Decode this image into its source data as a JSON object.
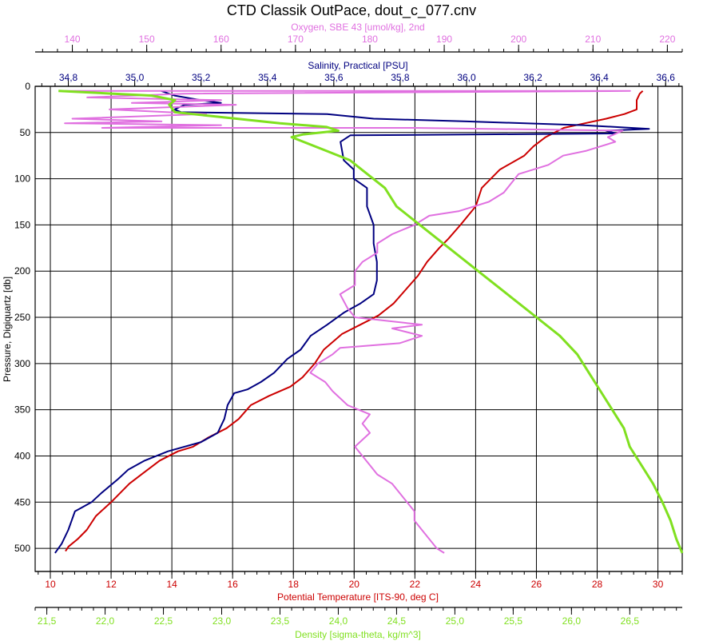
{
  "chart_data": {
    "type": "line",
    "title": "CTD Classik OutPace, dout_c_077.cnv",
    "y_axis": {
      "label": "Pressure, Digiquartz [db]",
      "range": [
        0,
        525
      ],
      "inverted": true,
      "ticks": [
        0,
        50,
        100,
        150,
        200,
        250,
        300,
        350,
        400,
        450,
        500
      ]
    },
    "x_axes": {
      "oxygen": {
        "label": "Oxygen, SBE 43 [umol/kg], 2nd",
        "position": "top-1",
        "range": [
          135,
          222
        ],
        "ticks": [
          140,
          150,
          160,
          170,
          180,
          190,
          200,
          210,
          220
        ],
        "color": "#e070e0"
      },
      "salinity": {
        "label": "Salinity, Practical [PSU]",
        "position": "top-2",
        "range": [
          34.7,
          36.65
        ],
        "ticks": [
          "34.8",
          "35.0",
          "35.2",
          "35.4",
          "35.6",
          "35.8",
          "36.0",
          "36.2",
          "36.4",
          "36.6"
        ],
        "color": "#000080"
      },
      "temperature": {
        "label": "Potential Temperature [ITS-90, deg C]",
        "position": "bottom-1",
        "range": [
          9.5,
          30.8
        ],
        "ticks": [
          10,
          12,
          14,
          16,
          18,
          20,
          22,
          24,
          26,
          28,
          30
        ],
        "color": "#cc0000"
      },
      "density": {
        "label": "Density [sigma-theta, kg/m^3]",
        "position": "bottom-2",
        "range": [
          21.4,
          26.95
        ],
        "ticks": [
          "21.5",
          "22.0",
          "22.5",
          "23.0",
          "23.5",
          "24.0",
          "24.5",
          "25.0",
          "25.5",
          "26.0",
          "26.5"
        ],
        "color": "#80e020"
      }
    },
    "grid": true,
    "series": [
      {
        "axis": "temperature",
        "color": "#cc0000",
        "points": [
          [
            29.5,
            5
          ],
          [
            29.4,
            8
          ],
          [
            29.3,
            15
          ],
          [
            29.3,
            25
          ],
          [
            28.9,
            30
          ],
          [
            28.3,
            35
          ],
          [
            27.6,
            40
          ],
          [
            26.9,
            45
          ],
          [
            26.3,
            55
          ],
          [
            25.9,
            65
          ],
          [
            25.6,
            75
          ],
          [
            24.8,
            90
          ],
          [
            24.2,
            110
          ],
          [
            24.0,
            130
          ],
          [
            23.5,
            150
          ],
          [
            23.1,
            165
          ],
          [
            22.8,
            175
          ],
          [
            22.4,
            190
          ],
          [
            22.1,
            205
          ],
          [
            21.7,
            220
          ],
          [
            21.3,
            235
          ],
          [
            20.8,
            248
          ],
          [
            20.2,
            258
          ],
          [
            19.6,
            268
          ],
          [
            19.0,
            285
          ],
          [
            18.7,
            300
          ],
          [
            18.3,
            315
          ],
          [
            17.9,
            325
          ],
          [
            17.2,
            335
          ],
          [
            16.6,
            345
          ],
          [
            16.2,
            360
          ],
          [
            15.8,
            370
          ],
          [
            15.2,
            380
          ],
          [
            14.7,
            390
          ],
          [
            14.2,
            395
          ],
          [
            13.6,
            405
          ],
          [
            13.0,
            420
          ],
          [
            12.6,
            430
          ],
          [
            12.0,
            450
          ],
          [
            11.5,
            465
          ],
          [
            11.2,
            480
          ],
          [
            10.9,
            490
          ],
          [
            10.6,
            498
          ],
          [
            10.5,
            503
          ]
        ]
      },
      {
        "axis": "salinity",
        "color": "#000080",
        "points": [
          [
            35.08,
            5
          ],
          [
            35.12,
            10
          ],
          [
            35.2,
            15
          ],
          [
            35.26,
            18
          ],
          [
            35.15,
            20
          ],
          [
            35.12,
            25
          ],
          [
            35.14,
            28
          ],
          [
            35.58,
            30
          ],
          [
            35.72,
            35
          ],
          [
            36.0,
            38
          ],
          [
            36.35,
            42
          ],
          [
            36.55,
            46
          ],
          [
            36.42,
            48
          ],
          [
            36.45,
            51
          ],
          [
            35.65,
            53
          ],
          [
            35.62,
            60
          ],
          [
            35.63,
            80
          ],
          [
            35.66,
            90
          ],
          [
            35.66,
            100
          ],
          [
            35.7,
            110
          ],
          [
            35.7,
            130
          ],
          [
            35.72,
            150
          ],
          [
            35.72,
            170
          ],
          [
            35.73,
            190
          ],
          [
            35.73,
            210
          ],
          [
            35.72,
            225
          ],
          [
            35.68,
            235
          ],
          [
            35.63,
            245
          ],
          [
            35.58,
            258
          ],
          [
            35.53,
            270
          ],
          [
            35.5,
            285
          ],
          [
            35.46,
            295
          ],
          [
            35.42,
            310
          ],
          [
            35.38,
            320
          ],
          [
            35.34,
            328
          ],
          [
            35.3,
            332
          ],
          [
            35.28,
            345
          ],
          [
            35.27,
            360
          ],
          [
            35.25,
            375
          ],
          [
            35.2,
            385
          ],
          [
            35.1,
            395
          ],
          [
            35.03,
            405
          ],
          [
            34.98,
            415
          ],
          [
            34.95,
            425
          ],
          [
            34.9,
            440
          ],
          [
            34.87,
            450
          ],
          [
            34.82,
            460
          ],
          [
            34.8,
            480
          ],
          [
            34.78,
            495
          ],
          [
            34.76,
            505
          ]
        ]
      },
      {
        "axis": "oxygen",
        "color": "#e070e0",
        "points": [
          [
            139,
            5
          ],
          [
            215,
            5
          ],
          [
            155,
            8
          ],
          [
            142,
            12
          ],
          [
            160,
            15
          ],
          [
            148,
            18
          ],
          [
            162,
            20
          ],
          [
            145,
            25
          ],
          [
            158,
            30
          ],
          [
            140,
            35
          ],
          [
            152,
            38
          ],
          [
            139,
            40
          ],
          [
            160,
            42
          ],
          [
            144,
            45
          ],
          [
            186,
            45
          ],
          [
            214,
            48
          ],
          [
            212,
            55
          ],
          [
            213,
            60
          ],
          [
            211,
            65
          ],
          [
            209,
            70
          ],
          [
            206,
            75
          ],
          [
            204,
            85
          ],
          [
            200,
            95
          ],
          [
            199,
            105
          ],
          [
            198,
            115
          ],
          [
            196,
            125
          ],
          [
            192,
            135
          ],
          [
            188,
            140
          ],
          [
            186,
            150
          ],
          [
            183,
            160
          ],
          [
            181,
            170
          ],
          [
            181,
            180
          ],
          [
            179,
            190
          ],
          [
            178,
            200
          ],
          [
            178,
            215
          ],
          [
            176,
            225
          ],
          [
            177,
            240
          ],
          [
            178,
            250
          ],
          [
            187,
            258
          ],
          [
            183,
            262
          ],
          [
            187,
            270
          ],
          [
            184,
            278
          ],
          [
            176,
            283
          ],
          [
            175,
            290
          ],
          [
            173,
            300
          ],
          [
            172,
            310
          ],
          [
            174,
            320
          ],
          [
            175,
            330
          ],
          [
            177,
            345
          ],
          [
            180,
            355
          ],
          [
            179,
            365
          ],
          [
            180,
            375
          ],
          [
            178,
            390
          ],
          [
            179,
            400
          ],
          [
            180,
            410
          ],
          [
            181,
            420
          ],
          [
            183,
            430
          ],
          [
            184,
            440
          ],
          [
            185,
            450
          ],
          [
            186,
            460
          ],
          [
            186,
            470
          ],
          [
            187,
            480
          ],
          [
            188,
            490
          ],
          [
            189,
            500
          ],
          [
            190,
            505
          ]
        ]
      },
      {
        "axis": "density",
        "color": "#80e020",
        "points": [
          [
            21.6,
            5
          ],
          [
            22.4,
            10
          ],
          [
            22.6,
            15
          ],
          [
            22.55,
            20
          ],
          [
            22.6,
            28
          ],
          [
            22.9,
            32
          ],
          [
            23.2,
            36
          ],
          [
            23.5,
            40
          ],
          [
            23.9,
            44
          ],
          [
            24.0,
            48
          ],
          [
            23.7,
            52
          ],
          [
            23.6,
            55
          ],
          [
            23.7,
            60
          ],
          [
            23.9,
            70
          ],
          [
            24.1,
            80
          ],
          [
            24.2,
            90
          ],
          [
            24.4,
            110
          ],
          [
            24.5,
            130
          ],
          [
            24.7,
            150
          ],
          [
            24.9,
            170
          ],
          [
            25.1,
            190
          ],
          [
            25.3,
            210
          ],
          [
            25.5,
            230
          ],
          [
            25.7,
            250
          ],
          [
            25.9,
            270
          ],
          [
            26.05,
            290
          ],
          [
            26.15,
            310
          ],
          [
            26.25,
            330
          ],
          [
            26.35,
            350
          ],
          [
            26.45,
            370
          ],
          [
            26.5,
            390
          ],
          [
            26.6,
            410
          ],
          [
            26.7,
            430
          ],
          [
            26.78,
            450
          ],
          [
            26.85,
            470
          ],
          [
            26.9,
            490
          ],
          [
            26.95,
            505
          ]
        ]
      }
    ]
  }
}
